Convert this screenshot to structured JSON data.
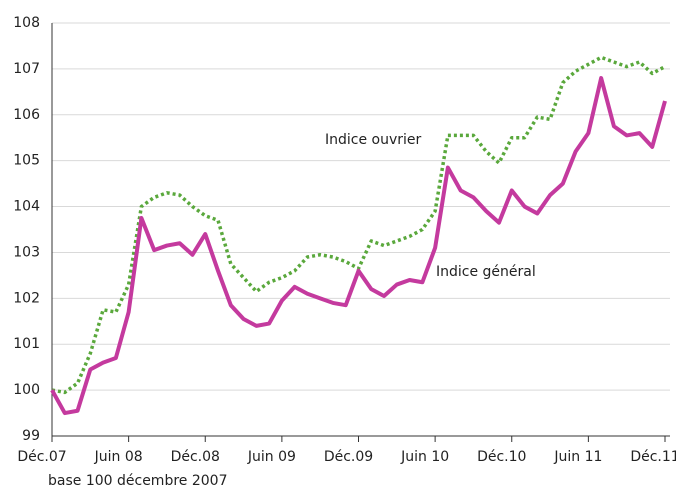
{
  "chart_data": {
    "type": "line",
    "categories": [
      "Déc.07",
      null,
      null,
      null,
      null,
      null,
      "Juin 08",
      null,
      null,
      null,
      null,
      null,
      "Déc.08",
      null,
      null,
      null,
      null,
      null,
      "Juin 09",
      null,
      null,
      null,
      null,
      null,
      "Déc.09",
      null,
      null,
      null,
      null,
      null,
      "Juin 10",
      null,
      null,
      null,
      null,
      null,
      "Déc.10",
      null,
      null,
      null,
      null,
      null,
      "Juin 11",
      null,
      null,
      null,
      null,
      null,
      "Déc.11"
    ],
    "series": [
      {
        "color": "#c43a9e",
        "values": [
          100.0,
          99.5,
          99.55,
          100.45,
          100.6,
          100.7,
          101.7,
          103.75,
          103.05,
          103.15,
          103.2,
          102.95,
          103.4,
          102.6,
          101.85,
          101.55,
          101.4,
          101.45,
          101.95,
          102.25,
          102.1,
          102.0,
          101.9,
          101.85,
          102.6,
          102.2,
          102.05,
          102.3,
          102.4,
          102.35,
          103.1,
          104.85,
          104.35,
          104.2,
          103.9,
          103.65,
          104.35,
          104.0,
          103.85,
          104.25,
          104.5,
          105.2,
          105.6,
          106.8,
          105.75,
          105.55,
          105.6,
          105.3,
          106.3
        ]
      },
      {
        "color": "#5aa83c",
        "dashed": true,
        "values": [
          100.0,
          99.95,
          100.15,
          100.8,
          101.75,
          101.7,
          102.3,
          104.0,
          104.2,
          104.3,
          104.25,
          104.0,
          103.8,
          103.7,
          102.75,
          102.45,
          102.15,
          102.35,
          102.45,
          102.6,
          102.9,
          102.95,
          102.9,
          102.8,
          102.65,
          103.25,
          103.15,
          103.25,
          103.35,
          103.5,
          103.9,
          105.55,
          105.55,
          105.55,
          105.2,
          104.95,
          105.5,
          105.5,
          105.95,
          105.9,
          106.7,
          106.95,
          107.1,
          107.25,
          107.15,
          107.05,
          107.15,
          106.9,
          107.05
        ]
      }
    ],
    "annotations": [
      "Indice ouvrier",
      "Indice général"
    ],
    "note": "base 100 décembre 2007",
    "ylim": [
      99,
      108
    ],
    "yticks": [
      99,
      100,
      101,
      102,
      103,
      104,
      105,
      106,
      107,
      108
    ],
    "grid": true
  }
}
